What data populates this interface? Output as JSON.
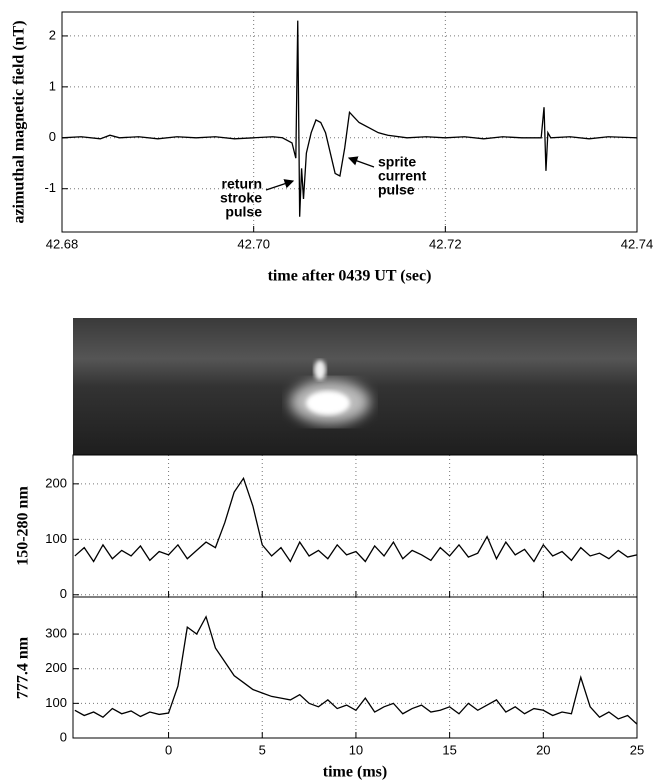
{
  "chart_data": [
    {
      "type": "line",
      "xlabel": "time after 0439 UT (sec)",
      "ylabel": "azimuthal magnetic field (nT)",
      "x": [
        42.68,
        42.682,
        42.684,
        42.685,
        42.686,
        42.688,
        42.69,
        42.692,
        42.694,
        42.696,
        42.698,
        42.7,
        42.702,
        42.703,
        42.704,
        42.7044,
        42.7046,
        42.7048,
        42.705,
        42.7052,
        42.7055,
        42.706,
        42.7065,
        42.707,
        42.7075,
        42.708,
        42.7085,
        42.709,
        42.7095,
        42.71,
        42.7105,
        42.711,
        42.712,
        42.713,
        42.714,
        42.716,
        42.718,
        42.72,
        42.722,
        42.724,
        42.726,
        42.728,
        42.73,
        42.7303,
        42.7305,
        42.7307,
        42.731,
        42.733,
        42.735,
        42.737,
        42.74
      ],
      "values": [
        0,
        0.02,
        -0.02,
        0.05,
        0,
        0.02,
        -0.02,
        0.02,
        0,
        0.02,
        -0.02,
        0,
        0.02,
        0,
        -0.1,
        -0.4,
        2.3,
        -1.55,
        -0.6,
        -1.2,
        -0.3,
        0.1,
        0.35,
        0.3,
        0.1,
        -0.3,
        -0.7,
        -0.75,
        -0.2,
        0.5,
        0.4,
        0.3,
        0.2,
        0.1,
        0.05,
        0,
        0.02,
        0,
        0.02,
        -0.02,
        0.02,
        0,
        0,
        0.6,
        -0.65,
        0.1,
        0,
        0.02,
        -0.02,
        0.02,
        0
      ],
      "color": "#000000",
      "xlim": [
        42.68,
        42.74
      ],
      "xticks": [
        42.68,
        {
          "value": 42.7,
          "label": "42.70"
        },
        42.72,
        42.74
      ],
      "show_xtick_labels": true,
      "ylim": [
        -1.85,
        2.47
      ],
      "yticks": [
        -1,
        0,
        1,
        2
      ],
      "grid": true,
      "annotations": [
        [
          "return",
          "stroke",
          "pulse"
        ],
        [
          "sprite",
          "current",
          "pulse"
        ]
      ]
    },
    {
      "type": "line",
      "ylabel": "150-280 nm",
      "x": [
        -5,
        -4.5,
        -4,
        -3.5,
        -3,
        -2.5,
        -2,
        -1.5,
        -1,
        -0.5,
        0,
        0.5,
        1,
        1.5,
        2,
        2.5,
        3,
        3.5,
        4,
        4.5,
        5,
        5.5,
        6,
        6.5,
        7,
        7.5,
        8,
        8.5,
        9,
        9.5,
        10,
        10.5,
        11,
        11.5,
        12,
        12.5,
        13,
        13.5,
        14,
        14.5,
        15,
        15.5,
        16,
        16.5,
        17,
        17.5,
        18,
        18.5,
        19,
        19.5,
        20,
        20.5,
        21,
        21.5,
        22,
        22.5,
        23,
        23.5,
        24,
        24.5,
        25
      ],
      "values": [
        70,
        85,
        60,
        90,
        65,
        80,
        70,
        88,
        62,
        78,
        72,
        90,
        65,
        80,
        95,
        85,
        130,
        185,
        210,
        160,
        90,
        70,
        85,
        60,
        95,
        70,
        80,
        65,
        90,
        72,
        78,
        60,
        88,
        70,
        95,
        65,
        80,
        72,
        62,
        85,
        70,
        90,
        68,
        75,
        105,
        65,
        95,
        72,
        82,
        60,
        90,
        70,
        78,
        62,
        85,
        70,
        75,
        65,
        80,
        68,
        72
      ],
      "color": "#000000",
      "xlim": [
        -5.1,
        25
      ],
      "xticks": [
        0,
        5,
        10,
        15,
        20,
        25
      ],
      "show_xtick_labels": false,
      "ylim": [
        -4,
        252
      ],
      "yticks": [
        0,
        100,
        200
      ],
      "grid": true
    },
    {
      "type": "line",
      "xlabel": "time (ms)",
      "ylabel": "777.4 nm",
      "x": [
        -5,
        -4.5,
        -4,
        -3.5,
        -3,
        -2.5,
        -2,
        -1.5,
        -1,
        -0.5,
        0,
        0.5,
        1,
        1.5,
        2,
        2.5,
        3,
        3.5,
        4,
        4.5,
        5,
        5.5,
        6,
        6.5,
        7,
        7.5,
        8,
        8.5,
        9,
        9.5,
        10,
        10.5,
        11,
        11.5,
        12,
        12.5,
        13,
        13.5,
        14,
        14.5,
        15,
        15.5,
        16,
        16.5,
        17,
        17.5,
        18,
        18.5,
        19,
        19.5,
        20,
        20.5,
        21,
        21.5,
        22,
        22.5,
        23,
        23.5,
        24,
        24.5,
        25
      ],
      "values": [
        80,
        65,
        75,
        60,
        85,
        70,
        78,
        62,
        75,
        68,
        72,
        150,
        320,
        300,
        350,
        260,
        220,
        180,
        160,
        140,
        130,
        120,
        115,
        110,
        125,
        100,
        90,
        110,
        85,
        95,
        80,
        115,
        75,
        90,
        100,
        70,
        85,
        95,
        75,
        80,
        90,
        70,
        100,
        80,
        95,
        110,
        75,
        90,
        70,
        85,
        80,
        65,
        75,
        70,
        175,
        90,
        60,
        75,
        55,
        65,
        40
      ],
      "color": "#000000",
      "xlim": [
        -5.1,
        25
      ],
      "xticks": [
        0,
        5,
        10,
        15,
        20,
        25
      ],
      "show_xtick_labels": true,
      "ylim": [
        0,
        407
      ],
      "yticks": [
        0,
        100,
        200,
        300
      ],
      "grid": true
    }
  ]
}
